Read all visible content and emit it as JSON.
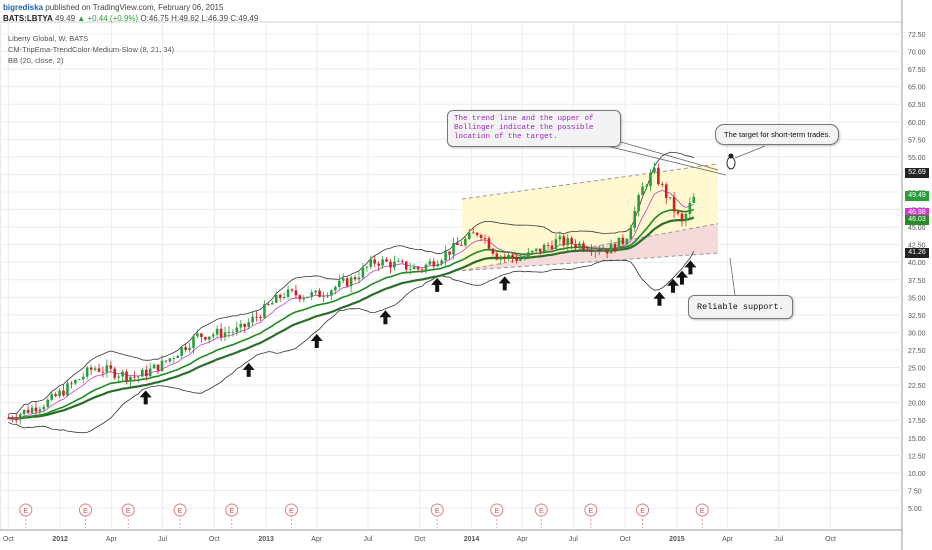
{
  "header": {
    "author": "bigrediska",
    "published": "published on TradingView.com, February 06, 2015",
    "symbol": "BATS:LBTYA",
    "last": "49.49",
    "change": "+0.44 (+0.9%)",
    "open": "O:46.75",
    "high": "H:49.62",
    "low": "L:46.39",
    "close": "C:49.49",
    "colors": {
      "author": "#1f5fae",
      "change_up": "#2a9d3a"
    }
  },
  "legend": {
    "title": "Liberty Global, W, BATS",
    "indicator1": "CM-TripEma-TrendColor-Medium-Slow (8, 21, 34)",
    "indicator2": "BB (20, close, 2)"
  },
  "annotations": {
    "target_note": "The trend line and the upper  of\nBollinger indicate the possible\nlocation of the target.",
    "short_term": "The target for short-term trades.",
    "support": "Reliable support."
  },
  "price_badges": [
    {
      "text": "52.69",
      "bg": "#222222",
      "fg": "#ffffff"
    },
    {
      "text": "49.49",
      "bg": "#2a9d3a",
      "fg": "#ffffff"
    },
    {
      "text": "47.07",
      "bg": "#1a7a1a",
      "fg": "#ffffff"
    },
    {
      "text": "46.98",
      "bg": "#d23bd2",
      "fg": "#ffffff"
    },
    {
      "text": "46.03",
      "bg": "#2a8a2a",
      "fg": "#ffffff"
    },
    {
      "text": "41.26",
      "bg": "#222222",
      "fg": "#ffffff"
    }
  ],
  "chart_data": {
    "type": "candlestick",
    "title": "Liberty Global, W, BATS",
    "x_tick_labels": [
      "Oct",
      "2012",
      "Apr",
      "Jul",
      "Oct",
      "2013",
      "Apr",
      "Jul",
      "Oct",
      "2014",
      "Apr",
      "Jul",
      "Oct",
      "2015",
      "Apr",
      "Jul",
      "Oct"
    ],
    "y_tick_labels": [
      "5.00",
      "7.50",
      "10.00",
      "12.50",
      "15.00",
      "17.50",
      "20.00",
      "22.50",
      "25.00",
      "27.50",
      "30.00",
      "32.50",
      "35.00",
      "37.50",
      "40.00",
      "42.50",
      "45.00",
      "47.50",
      "50.00",
      "52.50",
      "55.00",
      "57.50",
      "60.00",
      "62.50",
      "65.00",
      "67.50",
      "70.00",
      "72.50"
    ],
    "ylim": [
      3.5,
      74
    ],
    "earnings_marker_label": "E",
    "earnings_markers": [
      "2011-11-01",
      "2012-02-15",
      "2012-05-01",
      "2012-08-01",
      "2012-11-01",
      "2013-02-15",
      "2013-11-01",
      "2014-02-15",
      "2014-05-05",
      "2014-08-01",
      "2014-11-01",
      "2015-02-15"
    ],
    "series": [
      {
        "name": "EMA 8",
        "color": "#1e8c1e"
      },
      {
        "name": "EMA 21",
        "color": "#1e8c1e"
      },
      {
        "name": "EMA 34",
        "color": "#2b6e2b"
      },
      {
        "name": "BB (20, close, 2)",
        "color": "#333333"
      }
    ],
    "price_path": [
      {
        "date": "2011-10-01",
        "close": 17.8
      },
      {
        "date": "2011-12-15",
        "close": 20.3
      },
      {
        "date": "2012-03-01",
        "close": 25.0
      },
      {
        "date": "2012-05-15",
        "close": 23.6
      },
      {
        "date": "2012-07-01",
        "close": 25.5
      },
      {
        "date": "2012-09-01",
        "close": 29.5
      },
      {
        "date": "2012-11-15",
        "close": 30.3
      },
      {
        "date": "2013-02-01",
        "close": 35.5
      },
      {
        "date": "2013-04-01",
        "close": 35.3
      },
      {
        "date": "2013-06-01",
        "close": 37.5
      },
      {
        "date": "2013-07-15",
        "close": 40.2
      },
      {
        "date": "2013-10-01",
        "close": 39.0
      },
      {
        "date": "2013-12-01",
        "close": 42.0
      },
      {
        "date": "2014-01-15",
        "close": 44.5
      },
      {
        "date": "2014-02-15",
        "close": 41.0
      },
      {
        "date": "2014-04-01",
        "close": 40.5
      },
      {
        "date": "2014-06-01",
        "close": 43.0
      },
      {
        "date": "2014-07-15",
        "close": 42.5
      },
      {
        "date": "2014-09-01",
        "close": 41.8
      },
      {
        "date": "2014-10-01",
        "close": 43.2
      },
      {
        "date": "2014-11-01",
        "close": 50.5
      },
      {
        "date": "2014-11-20",
        "close": 53.0
      },
      {
        "date": "2014-12-10",
        "close": 50.0
      },
      {
        "date": "2015-01-10",
        "close": 45.5
      },
      {
        "date": "2015-02-01",
        "close": 49.49
      }
    ],
    "support_arrows": [
      "2012-06-01",
      "2012-12-01",
      "2013-04-01",
      "2013-08-01",
      "2013-11-01",
      "2014-03-01",
      "2014-12-01",
      "2014-12-25",
      "2015-01-10",
      "2015-01-25"
    ],
    "channel": {
      "start": "2013-12-15",
      "end": "2015-03-15",
      "upper": [
        49.0,
        54.0
      ],
      "middle": [
        38.8,
        45.5
      ],
      "lower": [
        38.8,
        41.3
      ],
      "upper_fill": "#fff8d0",
      "lower_fill": "#f5dada"
    },
    "grid": true,
    "legend_position": "top-left"
  }
}
